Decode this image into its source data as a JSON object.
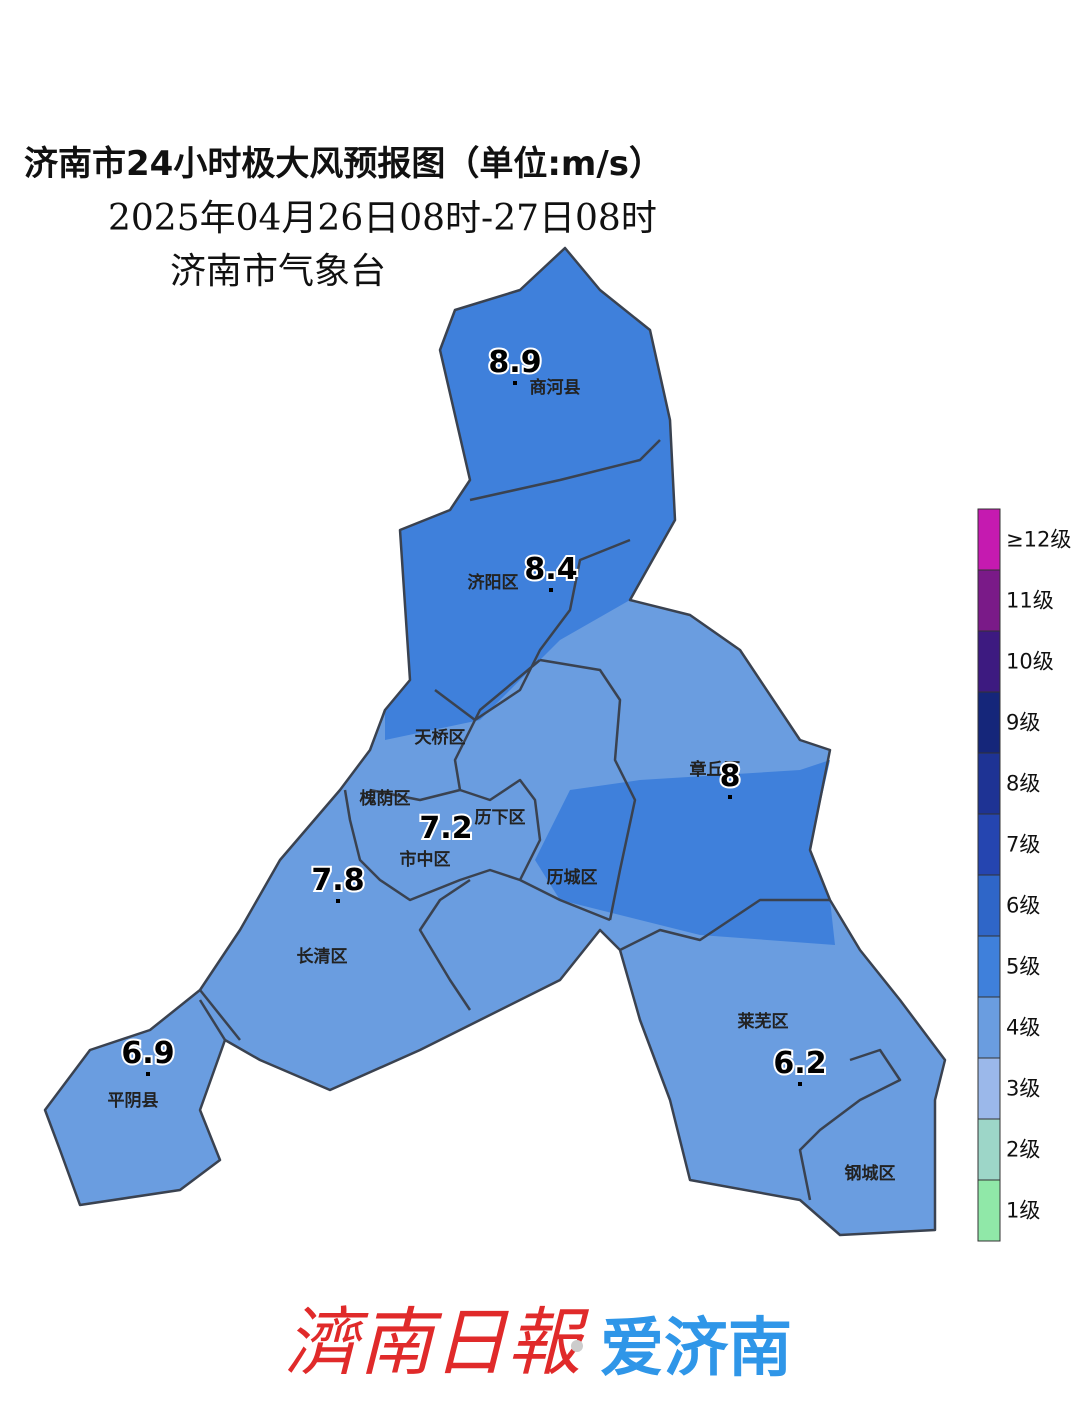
{
  "title": "济南市24小时极大风预报图（单位:m/s）",
  "subtitle": "2025年04月26日08时-27日08时",
  "issuer": "济南市气象台",
  "districts": [
    {
      "label": "商河县"
    },
    {
      "label": "济阳区"
    },
    {
      "label": "天桥区"
    },
    {
      "label": "槐荫区"
    },
    {
      "label": "历下区"
    },
    {
      "label": "市中区"
    },
    {
      "label": "历城区"
    },
    {
      "label": "章丘区"
    },
    {
      "label": "长清区"
    },
    {
      "label": "平阴县"
    },
    {
      "label": "莱芜区"
    },
    {
      "label": "钢城区"
    }
  ],
  "stations": [
    {
      "value": 8.9
    },
    {
      "value": 8.4
    },
    {
      "value": 8
    },
    {
      "value": 7.2
    },
    {
      "value": 7.8
    },
    {
      "value": 6.9
    },
    {
      "value": 6.2
    }
  ],
  "legend": [
    {
      "label": "≥12级",
      "color": "#c51ab0"
    },
    {
      "label": "11级",
      "color": "#7a1a88"
    },
    {
      "label": "10级",
      "color": "#3d1a80"
    },
    {
      "label": "9级",
      "color": "#15267a"
    },
    {
      "label": "8级",
      "color": "#1e3394"
    },
    {
      "label": "7级",
      "color": "#2545b0"
    },
    {
      "label": "6级",
      "color": "#2f66c8"
    },
    {
      "label": "5级",
      "color": "#3f80db"
    },
    {
      "label": "4级",
      "color": "#6a9de0"
    },
    {
      "label": "3级",
      "color": "#9bb8ea"
    },
    {
      "label": "2级",
      "color": "#9dd6c8"
    },
    {
      "label": "1级",
      "color": "#90e8a8"
    }
  ],
  "footer": {
    "brand": "濟南日報",
    "app": "爱济南"
  }
}
